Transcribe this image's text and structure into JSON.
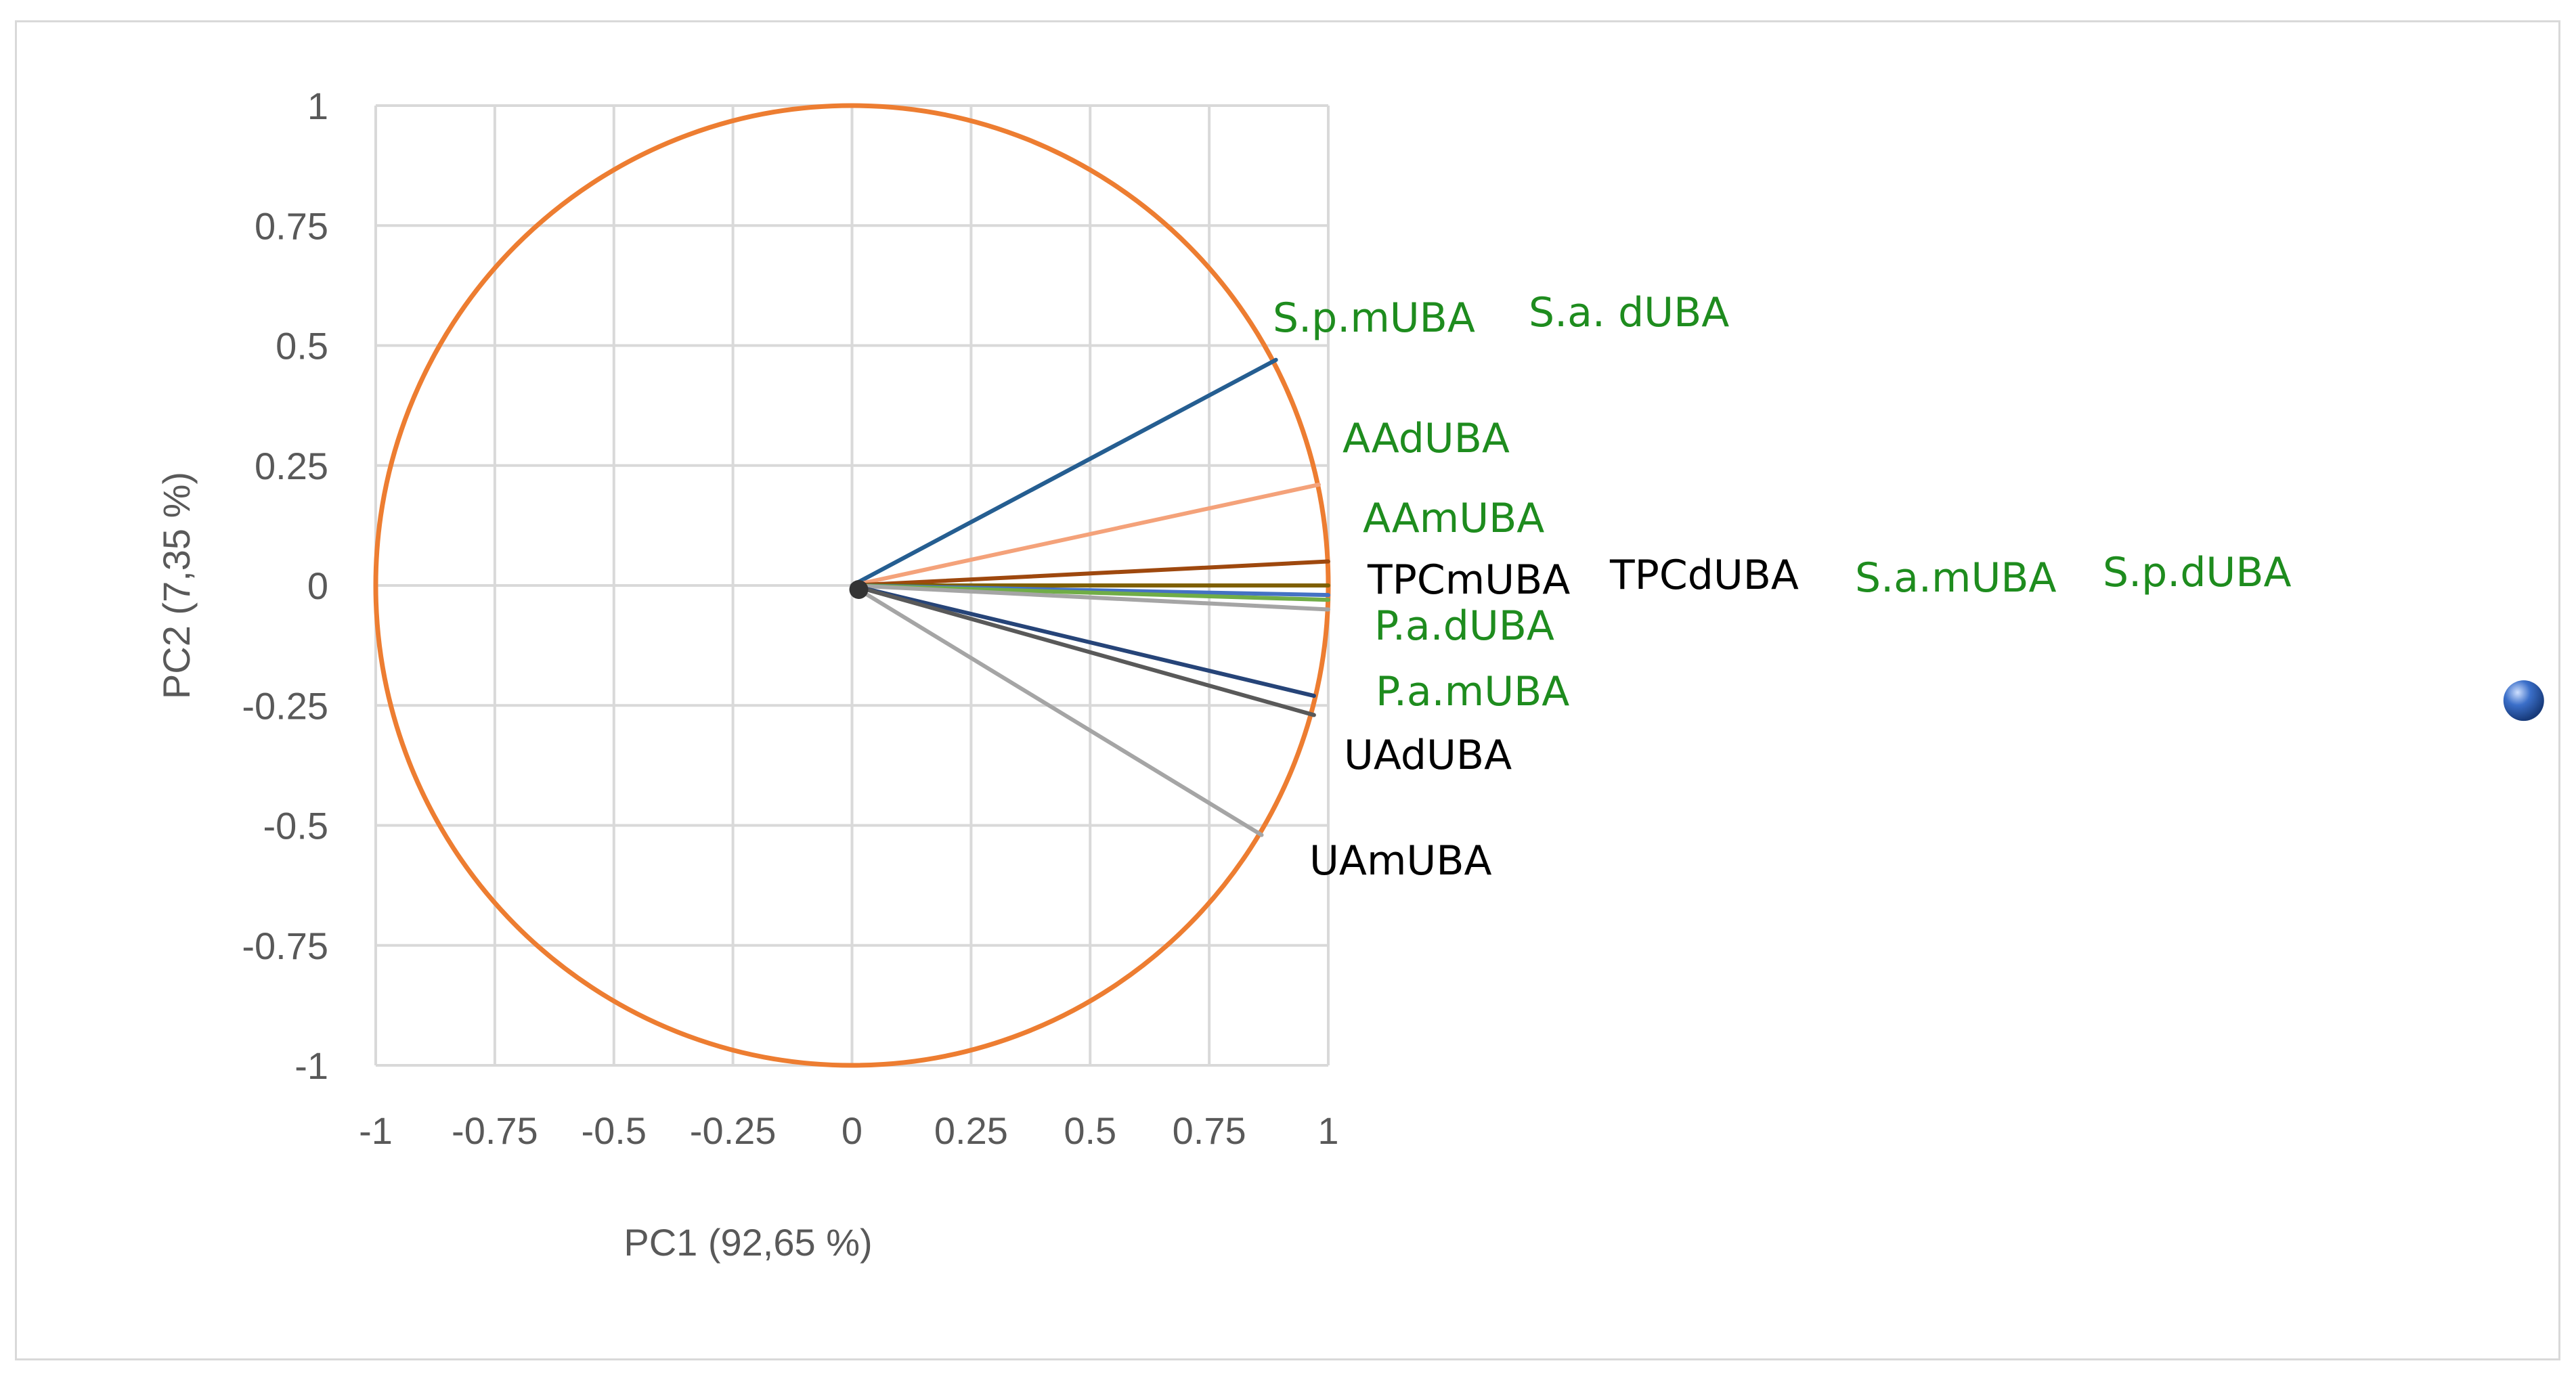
{
  "chart_data": {
    "type": "scatter",
    "subtype": "pca-correlation-circle",
    "xlabel": "PC1 (92,65 %)",
    "ylabel": "PC2 (7,35 %)",
    "xlim": [
      -1,
      1
    ],
    "ylim": [
      -1,
      1
    ],
    "xticks": [
      "-1",
      "-0.75",
      "-0.5",
      "-0.25",
      "0",
      "0.25",
      "0.5",
      "0.75",
      "1"
    ],
    "yticks": [
      "1",
      "0.75",
      "0.5",
      "0.25",
      "0",
      "-0.25",
      "-0.5",
      "-0.75",
      "-1"
    ],
    "grid": true,
    "circle_color": "#ED7D31",
    "vectors": [
      {
        "label": "S.p.mUBA",
        "x": 0.89,
        "y": 0.47,
        "line_color": "#255E91",
        "label_color": "#1E8C1E"
      },
      {
        "label": "S.a. dUBA",
        "x": 0.89,
        "y": 0.47,
        "line_color": "#255E91",
        "label_color": "#1E8C1E"
      },
      {
        "label": "AAdUBA",
        "x": 0.98,
        "y": 0.21,
        "line_color": "#F4A27A",
        "label_color": "#1E8C1E"
      },
      {
        "label": "AAmUBA",
        "x": 1.0,
        "y": 0.05,
        "line_color": "#9E480E",
        "label_color": "#1E8C1E"
      },
      {
        "label": "TPCmUBA",
        "x": 1.0,
        "y": 0.0,
        "line_color": "#B8860B",
        "label_color": "#000000"
      },
      {
        "label": "TPCdUBA",
        "x": 1.0,
        "y": 0.0,
        "line_color": "#7F6000",
        "label_color": "#000000"
      },
      {
        "label": "S.a.mUBA",
        "x": 1.0,
        "y": -0.02,
        "line_color": "#4472C4",
        "label_color": "#1E8C1E"
      },
      {
        "label": "S.p.dUBA",
        "x": 1.0,
        "y": -0.03,
        "line_color": "#70AD47",
        "label_color": "#1E8C1E"
      },
      {
        "label": "P.a.dUBA",
        "x": 1.0,
        "y": -0.05,
        "line_color": "#A5A5A5",
        "label_color": "#1E8C1E"
      },
      {
        "label": "P.a.mUBA",
        "x": 0.97,
        "y": -0.23,
        "line_color": "#264478",
        "label_color": "#1E8C1E"
      },
      {
        "label": "UAdUBA",
        "x": 0.97,
        "y": -0.27,
        "line_color": "#595959",
        "label_color": "#000000"
      },
      {
        "label": "UAmUBA",
        "x": 0.86,
        "y": -0.52,
        "line_color": "#A5A5A5",
        "label_color": "#000000"
      }
    ],
    "marker": {
      "x": 3.51,
      "y": -0.24,
      "color": "#3B6FC9"
    }
  }
}
